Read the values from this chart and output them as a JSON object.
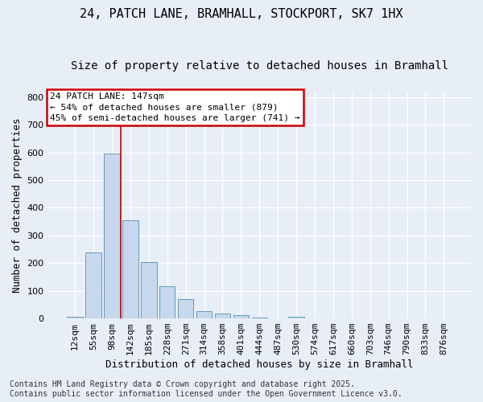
{
  "title_line1": "24, PATCH LANE, BRAMHALL, STOCKPORT, SK7 1HX",
  "title_line2": "Size of property relative to detached houses in Bramhall",
  "xlabel": "Distribution of detached houses by size in Bramhall",
  "ylabel": "Number of detached properties",
  "categories": [
    "12sqm",
    "55sqm",
    "98sqm",
    "142sqm",
    "185sqm",
    "228sqm",
    "271sqm",
    "314sqm",
    "358sqm",
    "401sqm",
    "444sqm",
    "487sqm",
    "530sqm",
    "574sqm",
    "617sqm",
    "660sqm",
    "703sqm",
    "746sqm",
    "790sqm",
    "833sqm",
    "876sqm"
  ],
  "values": [
    5,
    238,
    597,
    355,
    205,
    115,
    70,
    27,
    17,
    12,
    4,
    1,
    5,
    0,
    0,
    0,
    0,
    0,
    0,
    0,
    0
  ],
  "bar_color": "#c8d8ec",
  "bar_edge_color": "#6699bb",
  "fig_bg_color": "#e8eef8",
  "plot_bg_color": "#e8eef8",
  "grid_color": "#ffffff",
  "vline_color": "#cc0000",
  "vline_x_idx": 3,
  "annotation_text": "24 PATCH LANE: 147sqm\n← 54% of detached houses are smaller (879)\n45% of semi-detached houses are larger (741) →",
  "annotation_box_edgecolor": "#cc0000",
  "annotation_box_facecolor": "#ffffff",
  "ylim": [
    0,
    820
  ],
  "yticks": [
    0,
    100,
    200,
    300,
    400,
    500,
    600,
    700,
    800
  ],
  "title_fontsize": 11,
  "subtitle_fontsize": 10,
  "ylabel_fontsize": 9,
  "xlabel_fontsize": 9,
  "tick_fontsize": 8,
  "annotation_fontsize": 8,
  "footer_fontsize": 7,
  "footer_text": "Contains HM Land Registry data © Crown copyright and database right 2025.\nContains public sector information licensed under the Open Government Licence v3.0."
}
